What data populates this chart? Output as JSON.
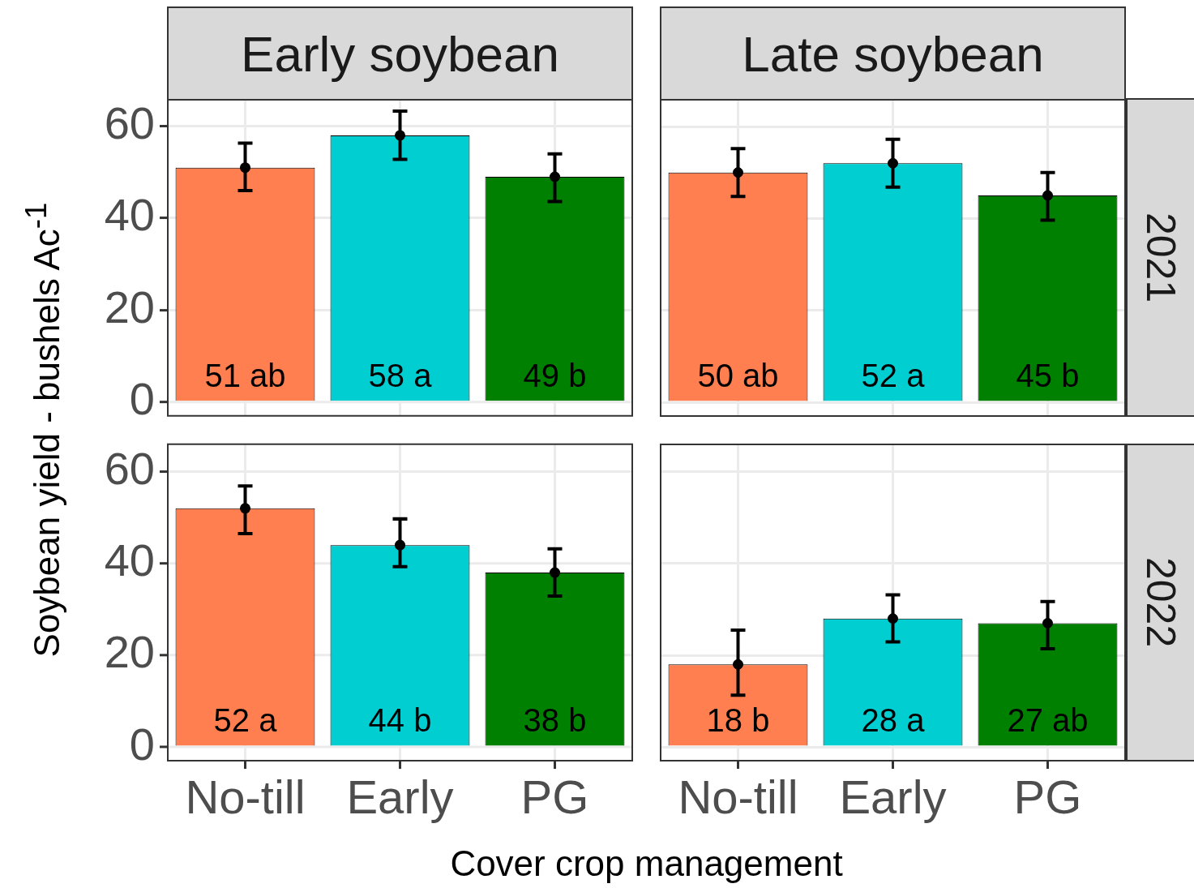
{
  "chart_data": [
    {
      "type": "bar",
      "title": "Early soybean",
      "ylabel": "Soybean yield - bushels  Ac$^{-1}$",
      "categories": [
        "No-till",
        "Early",
        "PG"
      ],
      "ylim": [
        -3,
        66
      ],
      "yticks": [
        0,
        20,
        40,
        60
      ],
      "grid": true,
      "tick_labels": "y",
      "series": [
        {
          "values": [
            51,
            58,
            49
          ],
          "colors": [
            "#ff7f50",
            "#00ced1",
            "#008000"
          ],
          "value_labels": [
            "51 ab",
            "58 a",
            "49 b"
          ]
        },
        {
          "type": "scatter",
          "x": [
            "No-till",
            "Early",
            "PG"
          ],
          "values": [
            51,
            58,
            49
          ],
          "color": "#000000",
          "marker": "circle",
          "errors": [
            [
              46.0,
              56.3
            ],
            [
              52.8,
              63.3
            ],
            [
              43.6,
              54.0
            ]
          ]
        }
      ]
    },
    {
      "type": "bar",
      "title": "Late soybean",
      "y2label": "2021",
      "categories": [
        "No-till",
        "Early",
        "PG"
      ],
      "ylim": [
        -3,
        66
      ],
      "yticks": [
        0,
        20,
        40,
        60
      ],
      "grid": true,
      "tick_labels": false,
      "series": [
        {
          "values": [
            50,
            52,
            45
          ],
          "colors": [
            "#ff7f50",
            "#00ced1",
            "#008000"
          ],
          "value_labels": [
            "50 ab",
            "52 a",
            "45 b"
          ]
        },
        {
          "type": "scatter",
          "x": [
            "No-till",
            "Early",
            "PG"
          ],
          "values": [
            50,
            52,
            45
          ],
          "color": "#000000",
          "marker": "circle",
          "errors": [
            [
              44.8,
              55.2
            ],
            [
              46.8,
              57.2
            ],
            [
              39.6,
              50.0
            ]
          ]
        }
      ]
    },
    {
      "type": "bar",
      "xlabel": "Cover crop management",
      "categories": [
        "No-till",
        "Early",
        "PG"
      ],
      "ylim": [
        -3,
        66
      ],
      "yticks": [
        0,
        20,
        40,
        60
      ],
      "grid": true,
      "series": [
        {
          "values": [
            52,
            44,
            38
          ],
          "colors": [
            "#ff7f50",
            "#00ced1",
            "#008000"
          ],
          "value_labels": [
            "52 a",
            "44 b",
            "38 b"
          ]
        },
        {
          "type": "scatter",
          "x": [
            "No-till",
            "Early",
            "PG"
          ],
          "values": [
            52,
            44,
            38
          ],
          "color": "#000000",
          "marker": "circle",
          "errors": [
            [
              46.5,
              56.9
            ],
            [
              39.3,
              49.7
            ],
            [
              32.9,
              43.2
            ]
          ]
        }
      ]
    },
    {
      "type": "bar",
      "y2label": "2022",
      "categories": [
        "No-till",
        "Early",
        "PG"
      ],
      "ylim": [
        -3,
        66
      ],
      "yticks": [
        0,
        20,
        40,
        60
      ],
      "grid": true,
      "tick_labels": "x",
      "series": [
        {
          "values": [
            18,
            28,
            27
          ],
          "colors": [
            "#ff7f50",
            "#00ced1",
            "#008000"
          ],
          "value_labels": [
            "18 b",
            "28 a",
            "27 ab"
          ]
        },
        {
          "type": "scatter",
          "x": [
            "No-till",
            "Early",
            "PG"
          ],
          "values": [
            18,
            28,
            27
          ],
          "color": "#000000",
          "marker": "circle",
          "errors": [
            [
              11.3,
              25.5
            ],
            [
              22.9,
              33.2
            ],
            [
              21.4,
              31.7
            ]
          ]
        }
      ]
    }
  ]
}
